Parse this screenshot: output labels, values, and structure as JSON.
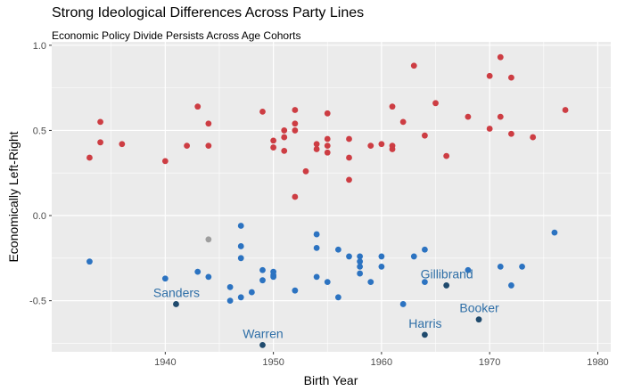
{
  "chart_data": {
    "type": "scatter",
    "title": "Strong Ideological Differences Across Party Lines",
    "subtitle": "Economic Policy Divide Persists Across Age Cohorts",
    "xlabel": "Birth Year",
    "ylabel": "Economically Left-Right",
    "xlim": [
      1929.5,
      1981.2
    ],
    "ylim": [
      -0.8,
      1.02
    ],
    "x_ticks": [
      1940,
      1950,
      1960,
      1970,
      1980
    ],
    "y_ticks": [
      -0.5,
      0.0,
      0.5,
      1.0
    ],
    "y_tick_labels": [
      "-0.5",
      "0.0",
      "0.5",
      "1.0"
    ],
    "grid": true,
    "legend": "none",
    "colors": {
      "republican": "#cd3d43",
      "democrat": "#2c73c1",
      "independent": "#9e9e9e",
      "highlight": "#1f4a6d",
      "annotation": "#2f6fa7",
      "panel": "#ebebeb",
      "grid": "#ffffff"
    },
    "series": [
      {
        "color": "#cd3d43",
        "points": [
          [
            1933,
            0.34
          ],
          [
            1934,
            0.43
          ],
          [
            1934,
            0.55
          ],
          [
            1936,
            0.42
          ],
          [
            1940,
            0.32
          ],
          [
            1942,
            0.41
          ],
          [
            1943,
            0.64
          ],
          [
            1944,
            0.54
          ],
          [
            1944,
            0.41
          ],
          [
            1949,
            0.61
          ],
          [
            1950,
            0.44
          ],
          [
            1950,
            0.4
          ],
          [
            1951,
            0.5
          ],
          [
            1951,
            0.46
          ],
          [
            1951,
            0.38
          ],
          [
            1952,
            0.62
          ],
          [
            1952,
            0.54
          ],
          [
            1952,
            0.5
          ],
          [
            1952,
            0.11
          ],
          [
            1953,
            0.26
          ],
          [
            1954,
            0.42
          ],
          [
            1954,
            0.39
          ],
          [
            1955,
            0.6
          ],
          [
            1955,
            0.45
          ],
          [
            1955,
            0.41
          ],
          [
            1955,
            0.37
          ],
          [
            1957,
            0.45
          ],
          [
            1957,
            0.34
          ],
          [
            1957,
            0.21
          ],
          [
            1959,
            0.41
          ],
          [
            1960,
            0.42
          ],
          [
            1961,
            0.64
          ],
          [
            1961,
            0.41
          ],
          [
            1961,
            0.39
          ],
          [
            1962,
            0.55
          ],
          [
            1963,
            0.88
          ],
          [
            1964,
            0.47
          ],
          [
            1965,
            0.66
          ],
          [
            1966,
            0.35
          ],
          [
            1968,
            0.58
          ],
          [
            1970,
            0.82
          ],
          [
            1970,
            0.51
          ],
          [
            1971,
            0.93
          ],
          [
            1971,
            0.58
          ],
          [
            1972,
            0.81
          ],
          [
            1972,
            0.48
          ],
          [
            1974,
            0.46
          ],
          [
            1977,
            0.62
          ]
        ]
      },
      {
        "color": "#2c73c1",
        "points": [
          [
            1933,
            -0.27
          ],
          [
            1940,
            -0.37
          ],
          [
            1943,
            -0.33
          ],
          [
            1944,
            -0.36
          ],
          [
            1946,
            -0.42
          ],
          [
            1946,
            -0.5
          ],
          [
            1947,
            -0.06
          ],
          [
            1947,
            -0.18
          ],
          [
            1947,
            -0.25
          ],
          [
            1947,
            -0.48
          ],
          [
            1948,
            -0.45
          ],
          [
            1949,
            -0.32
          ],
          [
            1949,
            -0.38
          ],
          [
            1950,
            -0.33
          ],
          [
            1950,
            -0.35
          ],
          [
            1950,
            -0.36
          ],
          [
            1952,
            -0.44
          ],
          [
            1954,
            -0.11
          ],
          [
            1954,
            -0.19
          ],
          [
            1954,
            -0.36
          ],
          [
            1955,
            -0.39
          ],
          [
            1956,
            -0.48
          ],
          [
            1956,
            -0.2
          ],
          [
            1957,
            -0.24
          ],
          [
            1958,
            -0.24
          ],
          [
            1958,
            -0.27
          ],
          [
            1958,
            -0.3
          ],
          [
            1958,
            -0.34
          ],
          [
            1959,
            -0.39
          ],
          [
            1960,
            -0.24
          ],
          [
            1960,
            -0.3
          ],
          [
            1962,
            -0.52
          ],
          [
            1963,
            -0.24
          ],
          [
            1964,
            -0.2
          ],
          [
            1964,
            -0.39
          ],
          [
            1968,
            -0.32
          ],
          [
            1971,
            -0.3
          ],
          [
            1972,
            -0.41
          ],
          [
            1973,
            -0.3
          ],
          [
            1976,
            -0.1
          ]
        ]
      },
      {
        "color": "#9e9e9e",
        "points": [
          [
            1944,
            -0.14
          ]
        ]
      },
      {
        "color": "#1f4a6d",
        "points": [
          [
            1941,
            -0.52
          ],
          [
            1949,
            -0.76
          ],
          [
            1964,
            -0.7
          ],
          [
            1966,
            -0.41
          ],
          [
            1969,
            -0.61
          ]
        ]
      }
    ],
    "annotations": [
      {
        "text": "Sanders",
        "x": 1941,
        "y": -0.52
      },
      {
        "text": "Warren",
        "x": 1949,
        "y": -0.76
      },
      {
        "text": "Harris",
        "x": 1964,
        "y": -0.7
      },
      {
        "text": "Gillibrand",
        "x": 1966,
        "y": -0.41
      },
      {
        "text": "Booker",
        "x": 1969,
        "y": -0.61
      }
    ]
  }
}
